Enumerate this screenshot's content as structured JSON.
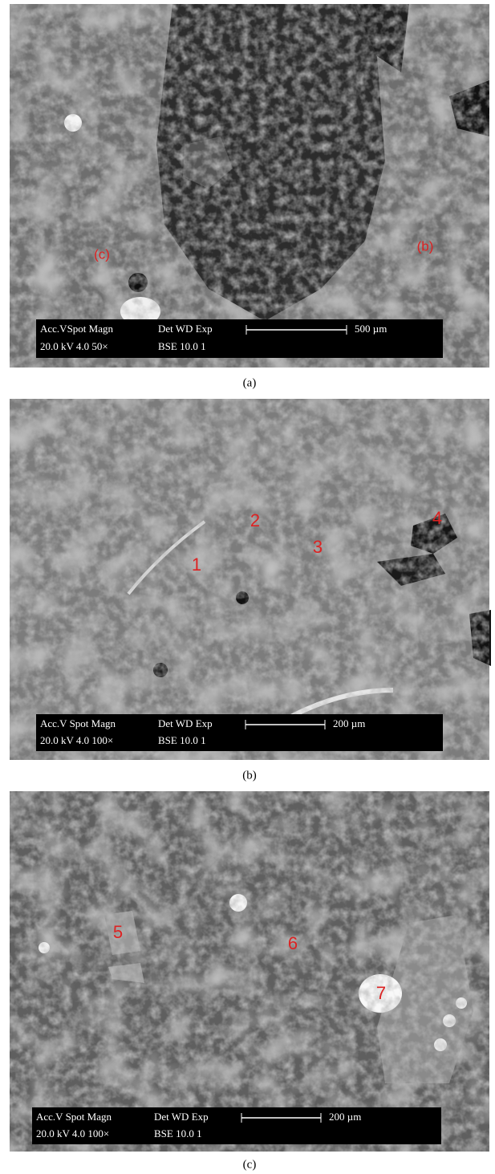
{
  "panels": [
    {
      "label": "(a)",
      "info": {
        "head1": "Acc.VSpot Magn",
        "head2": "Det  WD  Exp",
        "val1": "20.0 kV 4.0  50×",
        "val2": "BSE 10.0  1"
      },
      "scale": "500 µm",
      "annotations": [
        "(c)",
        "(b)"
      ]
    },
    {
      "label": "(b)",
      "info": {
        "head1": "Acc.V  Spot Magn",
        "head2": "Det  WD  Exp",
        "val1": "20.0 kV 4.0  100×",
        "val2": "BSE 10.0  1"
      },
      "scale": "200 µm",
      "annotations": [
        "1",
        "2",
        "3",
        "4"
      ]
    },
    {
      "label": "(c)",
      "info": {
        "head1": "Acc.V  Spot Magn",
        "head2": "Det  WD  Exp",
        "val1": "20.0 kV 4.0  100×",
        "val2": "BSE 10.0  1"
      },
      "scale": "200 µm",
      "annotations": [
        "5",
        "6",
        "7"
      ]
    }
  ]
}
